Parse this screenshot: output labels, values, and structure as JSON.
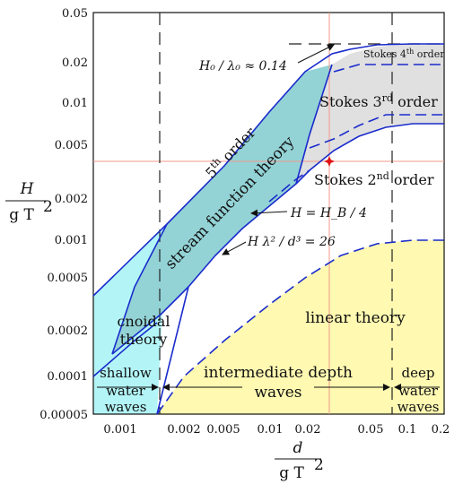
{
  "axes": {
    "x_ticks": [
      "0.001",
      "0.002",
      "0.005",
      "0.01",
      "0.02",
      "0.05",
      "0.1",
      "0.2"
    ],
    "y_ticks": [
      "0.00005",
      "0.0001",
      "0.0002",
      "0.0005",
      "0.001",
      "0.002",
      "0.005",
      "0.01",
      "0.02",
      "0.05"
    ],
    "x_label_numerator": "d",
    "x_label_denominator": "g T",
    "x_label_denominator_exp": "2",
    "y_label_numerator": "H",
    "y_label_denominator": "g T",
    "y_label_denominator_exp": "2"
  },
  "regions": {
    "stokes4": "Stokes 4",
    "stokes4_sup": "th",
    "stokes4_suffix": " order",
    "stokes3": "Stokes 3",
    "stokes3_sup": "rd",
    "stokes3_suffix": " order",
    "stokes2": "Stokes 2",
    "stokes2_sup": "nd",
    "stokes2_suffix": " order",
    "fifth_order": "5",
    "fifth_order_sup": "th",
    "fifth_order_suffix": " order",
    "stream_function": "stream function theory",
    "cnoidal_line1": "cnoidal",
    "cnoidal_line2": "theory",
    "linear": "linear theory",
    "shallow_line1": "shallow",
    "shallow_line2": "water",
    "shallow_line3": "waves",
    "intermediate_line1": "intermediate depth",
    "intermediate_line2": "waves",
    "deep_line1": "deep",
    "deep_line2": "water",
    "deep_line3": "waves"
  },
  "annotations": {
    "steepness": "H₀ / λ₀ ≈ 0.14",
    "breaking": "H = H_B / 4",
    "ursell": "H λ² / d³ = 26"
  },
  "colors": {
    "cyan_region": "#b3f5f7",
    "yellow_region": "#fff9b1",
    "grey_region": "#e0e0e0",
    "teal_region": "#93d3d6",
    "boundary": "#1a2bcc",
    "reference_line": "#f29a8a",
    "marker": "#e01010"
  }
}
